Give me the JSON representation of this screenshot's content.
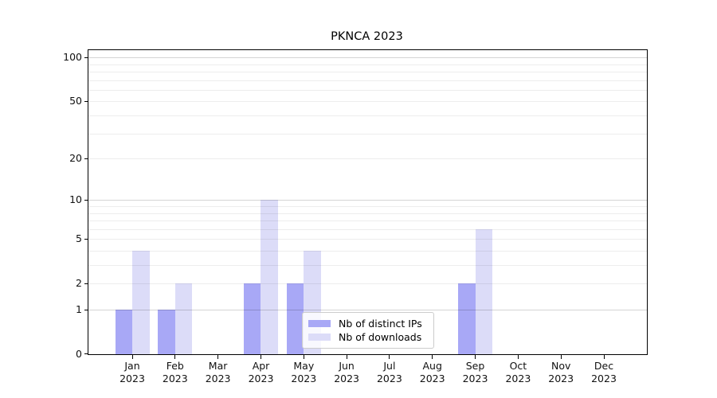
{
  "title": "PKNCA 2023",
  "colors": {
    "distinct_ips": "#a8a8f6",
    "downloads": "#dcdcf8",
    "grid_minor": "#ededed",
    "grid_major": "#d3d3d3",
    "axis": "#000000",
    "legend_border": "#cccccc"
  },
  "legend": {
    "items": [
      {
        "label": "Nb of distinct IPs"
      },
      {
        "label": "Nb of downloads"
      }
    ]
  },
  "chart_data": {
    "type": "bar",
    "title": "PKNCA 2023",
    "x_labels": [
      "Jan\n2023",
      "Feb\n2023",
      "Mar\n2023",
      "Apr\n2023",
      "May\n2023",
      "Jun\n2023",
      "Jul\n2023",
      "Aug\n2023",
      "Sep\n2023",
      "Oct\n2023",
      "Nov\n2023",
      "Dec\n2023"
    ],
    "series": [
      {
        "name": "Nb of distinct IPs",
        "color": "#a8a8f6",
        "values": [
          1,
          1,
          0,
          2,
          2,
          0,
          0,
          0,
          2,
          0,
          0,
          0
        ]
      },
      {
        "name": "Nb of downloads",
        "color": "#dcdcf8",
        "values": [
          4,
          2,
          0,
          10,
          4,
          0,
          0,
          0,
          6,
          0,
          0,
          0
        ]
      }
    ],
    "y_scale": "log2(1+v)",
    "y_ticks": [
      0,
      1,
      2,
      5,
      10,
      20,
      50,
      100
    ],
    "y_max": 112,
    "grid": {
      "major": [
        1,
        10,
        100
      ],
      "minor": [
        2,
        3,
        4,
        5,
        6,
        7,
        8,
        9,
        20,
        30,
        40,
        50,
        60,
        70,
        80,
        90
      ]
    },
    "legend_position": "inside-bottom-center",
    "xlabel": "",
    "ylabel": ""
  }
}
